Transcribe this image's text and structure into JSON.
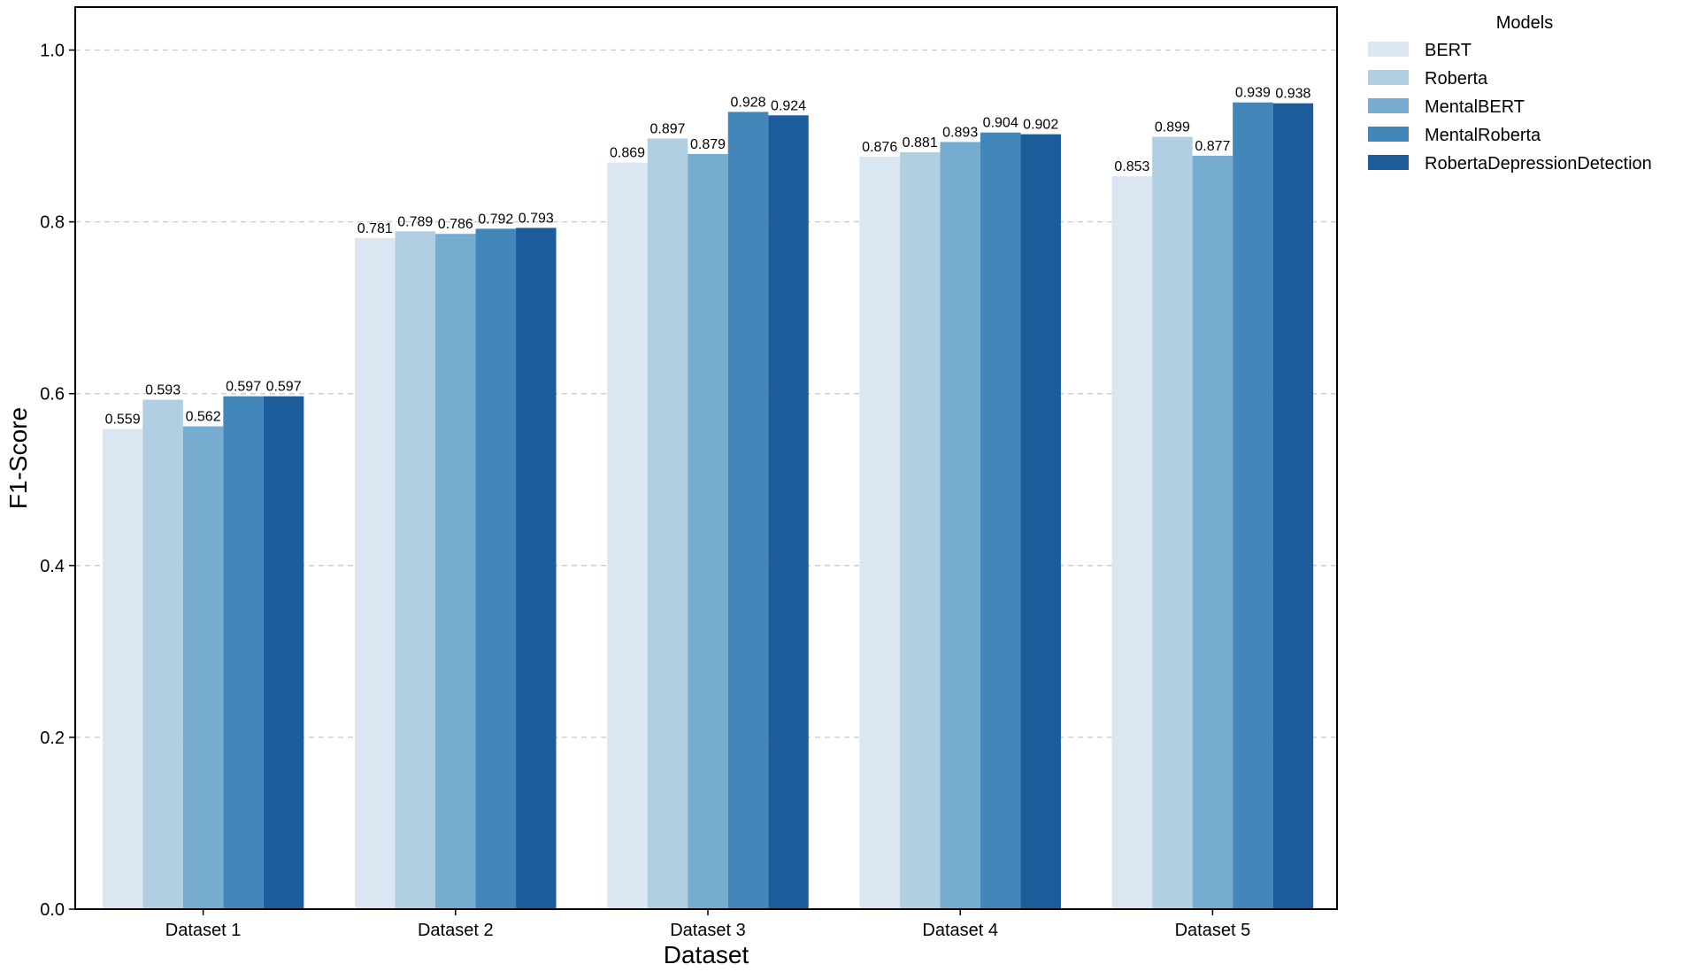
{
  "chart_data": {
    "type": "bar",
    "title": "",
    "xlabel": "Dataset",
    "ylabel": "F1-Score",
    "ylim": [
      0,
      1.05
    ],
    "yticks": [
      "0.0",
      "0.2",
      "0.4",
      "0.6",
      "0.8",
      "1.0"
    ],
    "ytick_values": [
      0,
      0.2,
      0.4,
      0.6,
      0.8,
      1.0
    ],
    "grid": "horizontal dashed",
    "categories": [
      "Dataset 1",
      "Dataset 2",
      "Dataset 3",
      "Dataset 4",
      "Dataset 5"
    ],
    "legend_title": "Models",
    "legend_position": "outside right, top",
    "series": [
      {
        "name": "BERT",
        "color": "#dae6f1",
        "values": [
          0.559,
          0.781,
          0.869,
          0.876,
          0.853
        ],
        "labels": [
          "0.559",
          "0.781",
          "0.869",
          "0.876",
          "0.853"
        ]
      },
      {
        "name": "Roberta",
        "color": "#b1cfe2",
        "values": [
          0.593,
          0.789,
          0.897,
          0.881,
          0.899
        ],
        "labels": [
          "0.593",
          "0.789",
          "0.897",
          "0.881",
          "0.899"
        ]
      },
      {
        "name": "MentalBERT",
        "color": "#76acd0",
        "values": [
          0.562,
          0.786,
          0.879,
          0.893,
          0.877
        ],
        "labels": [
          "0.562",
          "0.786",
          "0.879",
          "0.893",
          "0.877"
        ]
      },
      {
        "name": "MentalRoberta",
        "color": "#4286ba",
        "values": [
          0.597,
          0.792,
          0.928,
          0.904,
          0.939
        ],
        "labels": [
          "0.597",
          "0.792",
          "0.928",
          "0.904",
          "0.939"
        ]
      },
      {
        "name": "RobertaDepressionDetection",
        "color": "#1c5c9b",
        "values": [
          0.597,
          0.793,
          0.924,
          0.902,
          0.938
        ],
        "labels": [
          "0.597",
          "0.793",
          "0.924",
          "0.902",
          "0.938"
        ]
      }
    ]
  }
}
